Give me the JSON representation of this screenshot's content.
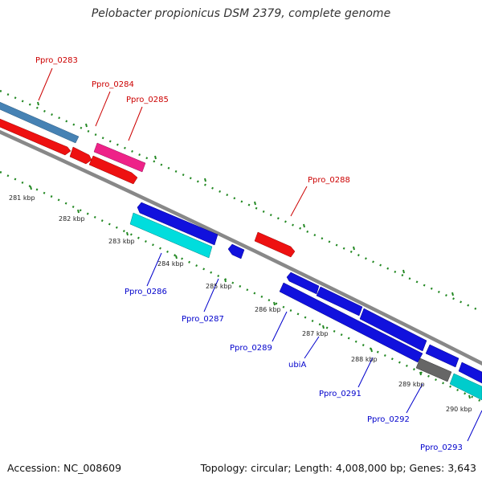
{
  "title": "Pelobacter propionicus DSM 2379, complete genome",
  "footer": {
    "accession": "Accession: NC_008609",
    "summary": "Topology: circular; Length: 4,008,000 bp; Genes: 3,643"
  },
  "colors": {
    "forward_label": "#cc0000",
    "reverse_label": "#0000cc",
    "tick": "#228822",
    "backbone": "#8a8a8a"
  },
  "genes": [
    {
      "id": "Ppro_0283",
      "label": "Ppro_0283",
      "strand": "forward",
      "color": "#4682b4"
    },
    {
      "id": "Ppro_0284",
      "label": "Ppro_0284",
      "strand": "forward",
      "color": "#ee1111"
    },
    {
      "id": "Ppro_0285",
      "label": "Ppro_0285",
      "strand": "forward",
      "color": "#ee2288"
    },
    {
      "id": "Ppro_0286",
      "label": "Ppro_0286",
      "strand": "reverse",
      "color": "#00dddd"
    },
    {
      "id": "Ppro_0287",
      "label": "Ppro_0287",
      "strand": "reverse",
      "color": "#1111dd"
    },
    {
      "id": "Ppro_0288",
      "label": "Ppro_0288",
      "strand": "forward",
      "color": "#ee1111"
    },
    {
      "id": "Ppro_0289",
      "label": "Ppro_0289",
      "strand": "reverse",
      "color": "#1111dd"
    },
    {
      "id": "ubiA",
      "label": "ubiA",
      "strand": "reverse",
      "color": "#1111dd"
    },
    {
      "id": "Ppro_0291",
      "label": "Ppro_0291",
      "strand": "reverse",
      "color": "#1111dd"
    },
    {
      "id": "Ppro_0292",
      "label": "Ppro_0292",
      "strand": "reverse",
      "color": "#666666"
    },
    {
      "id": "Ppro_0293",
      "label": "Ppro_0293",
      "strand": "reverse",
      "color": "#00cccc"
    }
  ],
  "kbp_labels": [
    "281 kbp",
    "282 kbp",
    "283 kbp",
    "284 kbp",
    "285 kbp",
    "286 kbp",
    "287 kbp",
    "288 kbp",
    "289 kbp",
    "290 kbp"
  ]
}
